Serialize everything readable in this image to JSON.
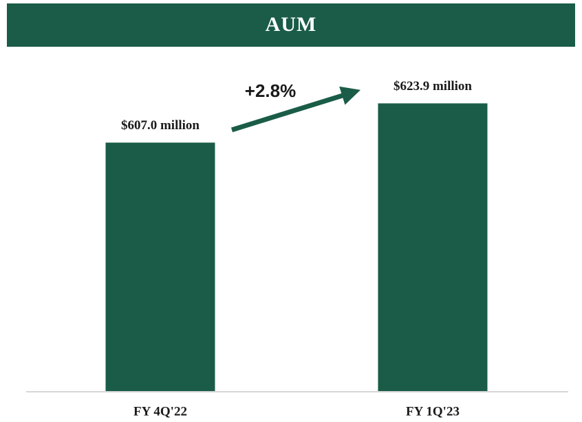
{
  "chart_data": {
    "type": "bar",
    "title": "AUM",
    "categories": [
      "FY 4Q'22",
      "FY 1Q'23"
    ],
    "values": [
      607.0,
      623.9
    ],
    "value_labels": [
      "$607.0 million",
      "$623.9 million"
    ],
    "color": "#1a5c47",
    "ylim": [
      500,
      640
    ],
    "annotation": "+2.8%"
  }
}
